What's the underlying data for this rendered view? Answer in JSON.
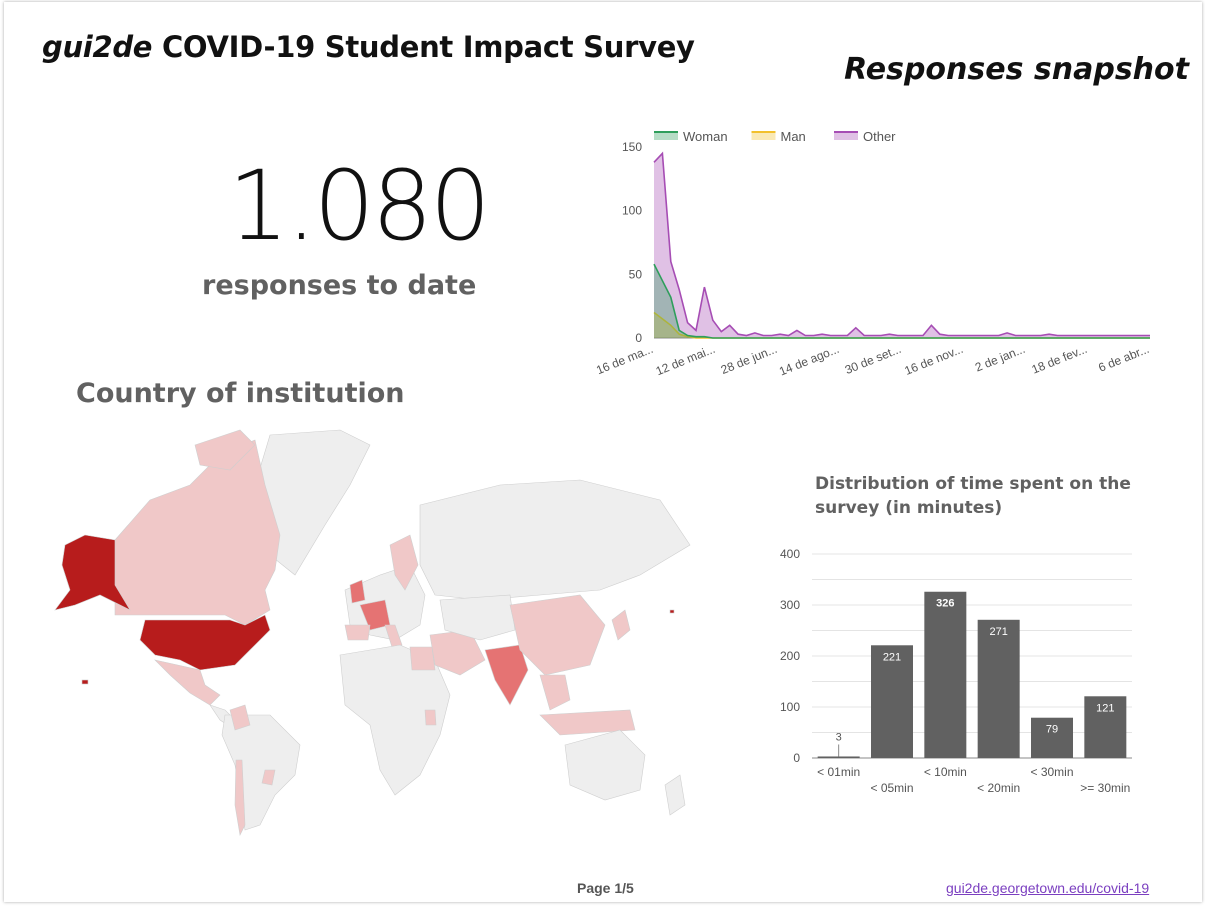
{
  "header": {
    "title_brand": "gui2de",
    "title_rest": " COVID-19 Student Impact Survey",
    "snapshot": "Responses snapshot"
  },
  "kpi": {
    "value": "1.080",
    "label": "responses to date"
  },
  "map": {
    "title": "Country of institution",
    "colors": {
      "high": "#b71c1c",
      "mid": "#e57373",
      "low": "#f0c8c8",
      "none": "#eeeeee",
      "border": "#cfcfcf"
    }
  },
  "footer": {
    "page": "Page 1/5",
    "link": "gui2de.georgetown.edu/covid-19"
  },
  "chart_data": [
    {
      "type": "area",
      "title": "",
      "legend_position": "top",
      "x_ticks": [
        "16 de ma...",
        "12 de mai...",
        "28 de jun...",
        "14 de ago...",
        "30 de set...",
        "16 de nov...",
        "2 de jan...",
        "18 de fev...",
        "6 de abr..."
      ],
      "ylim": [
        0,
        150
      ],
      "y_ticks": [
        0,
        50,
        100,
        150
      ],
      "grid": false,
      "series": [
        {
          "name": "Woman",
          "color": "#2e9e5b",
          "values": [
            58,
            45,
            32,
            6,
            2,
            1,
            1,
            0,
            0,
            0,
            0,
            0,
            0,
            0,
            0,
            0,
            0,
            0,
            0,
            0,
            0,
            0,
            0,
            0,
            0,
            0,
            0,
            0,
            0,
            0,
            0,
            0,
            0,
            0,
            0,
            0,
            0,
            0,
            0,
            0,
            0,
            0,
            0,
            0,
            0,
            0,
            0,
            0,
            0,
            0,
            0,
            0,
            0,
            0,
            0,
            0,
            0,
            0,
            0,
            0
          ]
        },
        {
          "name": "Man",
          "color": "#f2c02c",
          "values": [
            20,
            15,
            10,
            3,
            1,
            0,
            0,
            0,
            0,
            0,
            0,
            0,
            0,
            0,
            0,
            0,
            0,
            0,
            0,
            0,
            0,
            0,
            0,
            0,
            0,
            0,
            0,
            0,
            0,
            0,
            0,
            0,
            0,
            0,
            0,
            0,
            0,
            0,
            0,
            0,
            0,
            0,
            0,
            0,
            0,
            0,
            0,
            0,
            0,
            0,
            0,
            0,
            0,
            0,
            0,
            0,
            0,
            0,
            0,
            0
          ]
        },
        {
          "name": "Other",
          "color": "#a64db4",
          "values": [
            138,
            145,
            60,
            38,
            12,
            6,
            40,
            14,
            5,
            10,
            3,
            2,
            4,
            2,
            2,
            3,
            2,
            6,
            2,
            2,
            3,
            2,
            2,
            2,
            8,
            2,
            2,
            2,
            3,
            2,
            2,
            2,
            2,
            10,
            3,
            2,
            2,
            2,
            2,
            2,
            2,
            2,
            4,
            2,
            2,
            2,
            2,
            3,
            2,
            2,
            2,
            2,
            2,
            2,
            2,
            2,
            2,
            2,
            2,
            2
          ]
        }
      ]
    },
    {
      "type": "bar",
      "title": "Distribution of time spent on the survey (in minutes)",
      "categories": [
        "< 01min",
        "< 05min",
        "< 10min",
        "< 20min",
        "< 30min",
        ">= 30min"
      ],
      "values": [
        3,
        221,
        326,
        271,
        79,
        121
      ],
      "ylim": [
        0,
        400
      ],
      "y_ticks": [
        0,
        100,
        200,
        300,
        400
      ],
      "grid": true,
      "bar_color": "#616161"
    }
  ]
}
